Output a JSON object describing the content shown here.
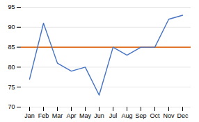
{
  "chart_data": {
    "type": "line",
    "categories": [
      "Jan",
      "Feb",
      "Mar",
      "Apr",
      "May",
      "Jun",
      "Jul",
      "Aug",
      "Sep",
      "Oct",
      "Nov",
      "Dec"
    ],
    "series": [
      {
        "color": "#4472C4",
        "values": [
          77,
          91,
          81,
          79,
          80,
          73,
          85,
          83,
          85,
          85,
          92,
          93
        ]
      }
    ],
    "benchmark": {
      "y": 85,
      "color": "#E07020"
    },
    "ylim": [
      70,
      95
    ],
    "yticks": [
      70,
      75,
      80,
      85,
      90,
      95
    ],
    "grid": true
  }
}
